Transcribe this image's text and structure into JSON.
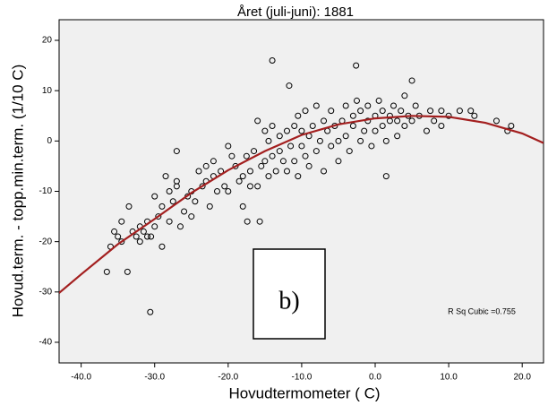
{
  "chart_data": {
    "type": "scatter",
    "title": "Året (juli-juni): 1881",
    "x_label": "Hovudtermometer ( C)",
    "y_label": "Hovud.term. - topp.min.term. (1/10 C)",
    "annotation": "R Sq Cubic =0.755",
    "panel_label": "b)",
    "marker_color": "#000000",
    "background": "#f0f0f0",
    "xlim": [
      -43,
      22.9
    ],
    "ylim": [
      -44.1,
      24.1
    ],
    "xticks": [
      {
        "value": -40,
        "label": "-40.0"
      },
      {
        "value": -30,
        "label": "-30.0"
      },
      {
        "value": -20,
        "label": "-20.0"
      },
      {
        "value": -10,
        "label": "-10.0"
      },
      {
        "value": 0,
        "label": "0.0"
      },
      {
        "value": 10,
        "label": "10.0"
      },
      {
        "value": 20,
        "label": "20.0"
      }
    ],
    "yticks": [
      -40,
      -30,
      -20,
      -10,
      0,
      10,
      20
    ],
    "x": [
      -36,
      -35.5,
      -35,
      -34.5,
      -34.5,
      -33.5,
      -33,
      -32.5,
      -32,
      -32,
      -31.5,
      -31,
      -31,
      -30.5,
      -30,
      -30,
      -29.5,
      -29,
      -29,
      -28.5,
      -28,
      -28,
      -27.5,
      -27,
      -27,
      -26.5,
      -26,
      -25.5,
      -25,
      -24.5,
      -24,
      -23.5,
      -23,
      -23,
      -22.5,
      -22,
      -22,
      -21.5,
      -21,
      -20.5,
      -20,
      -20,
      -19.5,
      -19,
      -18.5,
      -18,
      -18,
      -17.5,
      -17,
      -17,
      -16.5,
      -16,
      -16,
      -15.5,
      -15,
      -15,
      -14.5,
      -14.5,
      -14,
      -14,
      -13.5,
      -13,
      -13,
      -12.5,
      -12,
      -12,
      -11.5,
      -11,
      -11,
      -10.5,
      -10.5,
      -10,
      -10,
      -9.5,
      -9.5,
      -9,
      -9,
      -8.5,
      -8,
      -8,
      -7.5,
      -7,
      -7,
      -6.5,
      -6,
      -6,
      -5.5,
      -5,
      -5,
      -4.5,
      -4,
      -4,
      -3.5,
      -3,
      -3,
      -2.5,
      -2,
      -2,
      -1.5,
      -1,
      -1,
      -0.5,
      0,
      0,
      0.5,
      1,
      1,
      1.5,
      2,
      2,
      2.5,
      3,
      3,
      3.5,
      4,
      4,
      4.5,
      5,
      5.5,
      6,
      7,
      7.5,
      8,
      9,
      9,
      10,
      11.5,
      13,
      13.5,
      16.5,
      18,
      18.5,
      -36.5,
      -33.7,
      -30.6,
      -14,
      -11.7,
      -2.6,
      5,
      -27,
      -17.4,
      -15.7,
      1.5,
      -25
    ],
    "values": [
      -21,
      -18,
      -19,
      -20,
      -16,
      -13,
      -18,
      -19,
      -17,
      -20,
      -18,
      -16,
      -19,
      -19,
      -11,
      -17,
      -15,
      -13,
      -21,
      -7,
      -10,
      -16,
      -12,
      -9,
      -8,
      -17,
      -14,
      -11,
      -10,
      -12,
      -6,
      -9,
      -5,
      -8,
      -13,
      -4,
      -7,
      -10,
      -6,
      -9,
      -1,
      -10,
      -3,
      -5,
      -8,
      -7,
      -13,
      -3,
      -9,
      -6,
      -2,
      4,
      -9,
      -5,
      2,
      -4,
      -7,
      0,
      3,
      -3,
      -6,
      1,
      -2,
      -4,
      2,
      -6,
      -1,
      3,
      -4,
      5,
      -7,
      2,
      -1,
      6,
      -3,
      1,
      -5,
      3,
      7,
      -2,
      0,
      4,
      -6,
      2,
      6,
      -1,
      3,
      0,
      -4,
      4,
      7,
      1,
      -2,
      5,
      3,
      8,
      0,
      6,
      2,
      4,
      7,
      -1,
      5,
      2,
      8,
      3,
      6,
      0,
      5,
      4,
      7,
      4,
      1,
      6,
      9,
      3,
      5,
      4,
      7,
      5,
      2,
      6,
      4,
      3,
      6,
      5,
      6,
      6,
      5,
      4,
      2,
      3,
      -26,
      -26,
      -34,
      16,
      11,
      15,
      12,
      -2,
      -16,
      -16,
      -7,
      -15
    ],
    "fit": {
      "color": "#a31f1f",
      "x": [
        -43,
        -40,
        -35,
        -30,
        -25,
        -20,
        -15,
        -10,
        -5,
        0,
        5,
        10,
        15,
        20,
        22.9
      ],
      "values": [
        -30.2,
        -26.5,
        -20.5,
        -15.5,
        -10.3,
        -5.8,
        -2,
        1.2,
        3.3,
        4.5,
        5,
        4.8,
        3.6,
        1.5,
        -0.4
      ]
    }
  }
}
